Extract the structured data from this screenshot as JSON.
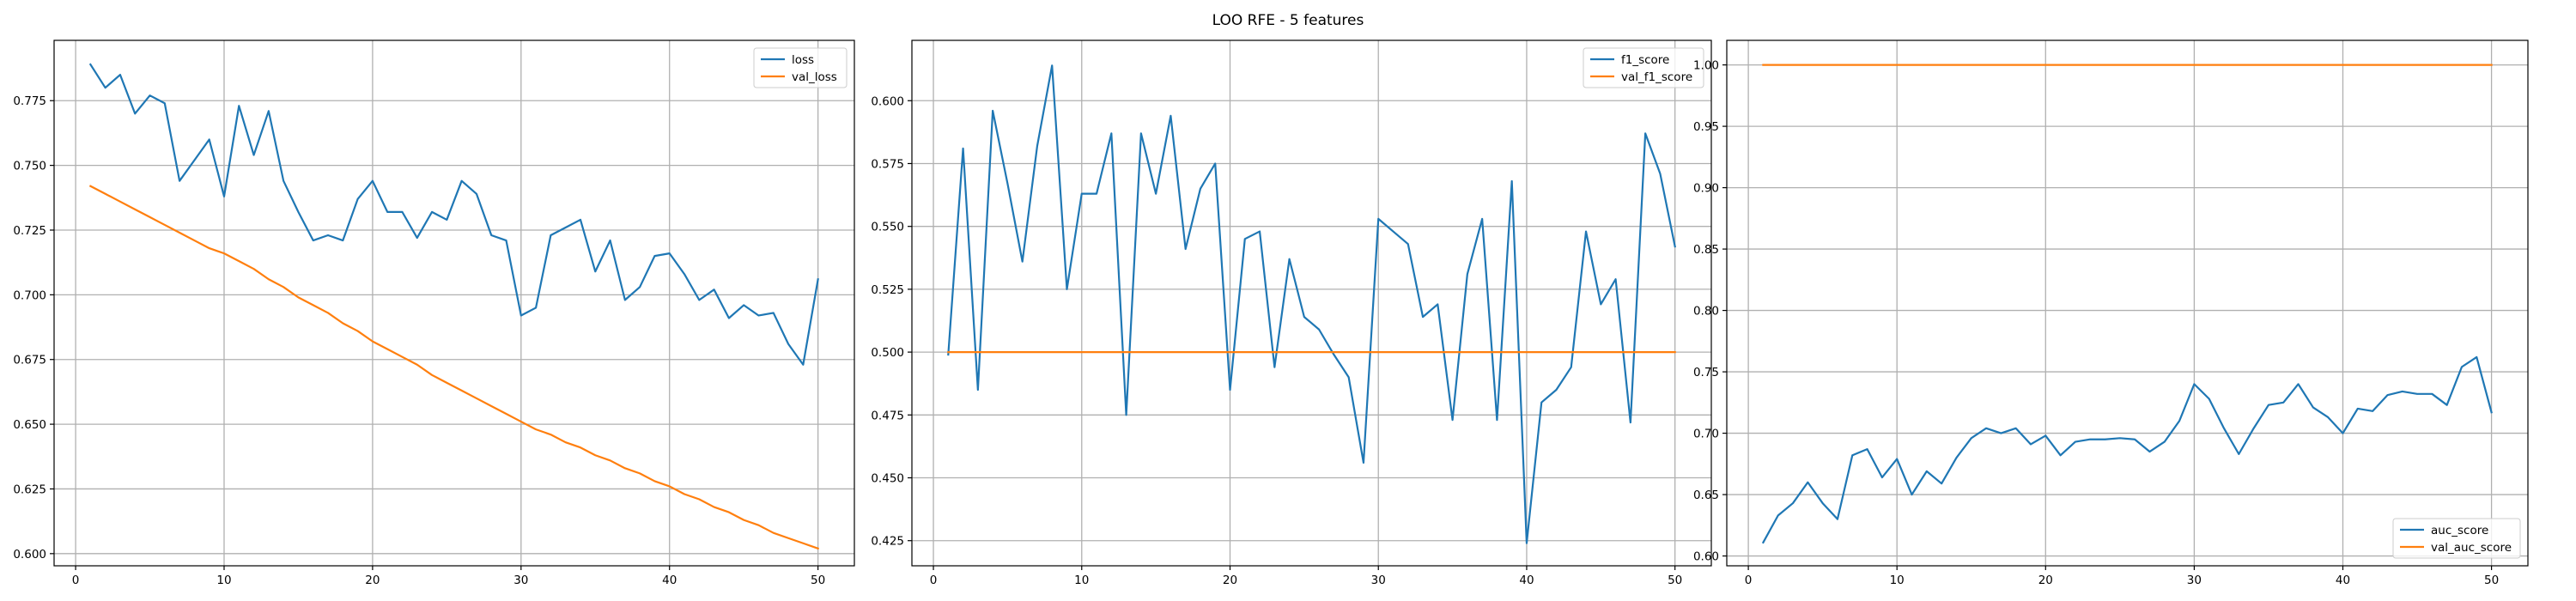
{
  "figure": {
    "title": "LOO RFE - 5 features"
  },
  "colors": {
    "series_1": "#1f77b4",
    "series_2": "#ff7f0e",
    "grid": "#b0b0b0",
    "axes": "#000000"
  },
  "chart_data": [
    {
      "type": "line",
      "title": "",
      "xlabel": "",
      "ylabel": "",
      "xlim": [
        -1.45,
        52.45
      ],
      "ylim": [
        0.5953,
        0.7983
      ],
      "xticks": [
        0,
        10,
        20,
        30,
        40,
        50
      ],
      "yticks": [
        0.6,
        0.625,
        0.65,
        0.675,
        0.7,
        0.725,
        0.75,
        0.775
      ],
      "ytick_labels": [
        "0.600",
        "0.625",
        "0.650",
        "0.675",
        "0.700",
        "0.725",
        "0.750",
        "0.775"
      ],
      "grid": true,
      "legend": "top-right",
      "series": [
        {
          "name": "loss",
          "color": "#1f77b4",
          "x": [
            1,
            2,
            3,
            4,
            5,
            6,
            7,
            8,
            9,
            10,
            11,
            12,
            13,
            14,
            15,
            16,
            17,
            18,
            19,
            20,
            21,
            22,
            23,
            24,
            25,
            26,
            27,
            28,
            29,
            30,
            31,
            32,
            33,
            34,
            35,
            36,
            37,
            38,
            39,
            40,
            41,
            42,
            43,
            44,
            45,
            46,
            47,
            48,
            49,
            50
          ],
          "values": [
            0.789,
            0.78,
            0.785,
            0.77,
            0.777,
            0.774,
            0.744,
            0.752,
            0.76,
            0.738,
            0.773,
            0.754,
            0.771,
            0.744,
            0.732,
            0.721,
            0.723,
            0.721,
            0.737,
            0.744,
            0.732,
            0.732,
            0.722,
            0.732,
            0.729,
            0.744,
            0.739,
            0.723,
            0.721,
            0.692,
            0.695,
            0.723,
            0.726,
            0.729,
            0.709,
            0.721,
            0.698,
            0.703,
            0.715,
            0.716,
            0.708,
            0.698,
            0.702,
            0.691,
            0.696,
            0.692,
            0.693,
            0.681,
            0.673,
            0.706
          ]
        },
        {
          "name": "val_loss",
          "color": "#ff7f0e",
          "x": [
            1,
            2,
            3,
            4,
            5,
            6,
            7,
            8,
            9,
            10,
            11,
            12,
            13,
            14,
            15,
            16,
            17,
            18,
            19,
            20,
            21,
            22,
            23,
            24,
            25,
            26,
            27,
            28,
            29,
            30,
            31,
            32,
            33,
            34,
            35,
            36,
            37,
            38,
            39,
            40,
            41,
            42,
            43,
            44,
            45,
            46,
            47,
            48,
            49,
            50
          ],
          "values": [
            0.742,
            0.739,
            0.736,
            0.733,
            0.73,
            0.727,
            0.724,
            0.721,
            0.718,
            0.716,
            0.713,
            0.71,
            0.706,
            0.703,
            0.699,
            0.696,
            0.693,
            0.689,
            0.686,
            0.682,
            0.679,
            0.676,
            0.673,
            0.669,
            0.666,
            0.663,
            0.66,
            0.657,
            0.654,
            0.651,
            0.648,
            0.646,
            0.643,
            0.641,
            0.638,
            0.636,
            0.633,
            0.631,
            0.628,
            0.626,
            0.623,
            0.621,
            0.618,
            0.616,
            0.613,
            0.611,
            0.608,
            0.606,
            0.604,
            0.602
          ]
        }
      ]
    },
    {
      "type": "line",
      "title": "",
      "xlabel": "",
      "ylabel": "",
      "xlim": [
        -1.45,
        52.45
      ],
      "ylim": [
        0.415,
        0.624
      ],
      "xticks": [
        0,
        10,
        20,
        30,
        40,
        50
      ],
      "yticks": [
        0.425,
        0.45,
        0.475,
        0.5,
        0.525,
        0.55,
        0.575,
        0.6
      ],
      "ytick_labels": [
        "0.425",
        "0.450",
        "0.475",
        "0.500",
        "0.525",
        "0.550",
        "0.575",
        "0.600"
      ],
      "grid": true,
      "legend": "top-right",
      "series": [
        {
          "name": "f1_score",
          "color": "#1f77b4",
          "x": [
            1,
            2,
            3,
            4,
            5,
            6,
            7,
            8,
            9,
            10,
            11,
            12,
            13,
            14,
            15,
            16,
            17,
            18,
            19,
            20,
            21,
            22,
            23,
            24,
            25,
            26,
            27,
            28,
            29,
            30,
            31,
            32,
            33,
            34,
            35,
            36,
            37,
            38,
            39,
            40,
            41,
            42,
            43,
            44,
            45,
            46,
            47,
            48,
            49,
            50
          ],
          "values": [
            0.499,
            0.581,
            0.485,
            0.596,
            0.567,
            0.536,
            0.582,
            0.614,
            0.525,
            0.563,
            0.563,
            0.587,
            0.475,
            0.587,
            0.563,
            0.594,
            0.541,
            0.565,
            0.575,
            0.485,
            0.545,
            0.548,
            0.494,
            0.537,
            0.514,
            0.509,
            0.499,
            0.49,
            0.456,
            0.553,
            0.548,
            0.543,
            0.514,
            0.519,
            0.473,
            0.531,
            0.553,
            0.473,
            0.568,
            0.424,
            0.48,
            0.485,
            0.494,
            0.548,
            0.519,
            0.529,
            0.472,
            0.587,
            0.571,
            0.542
          ]
        },
        {
          "name": "val_f1_score",
          "color": "#ff7f0e",
          "x": [
            1,
            2,
            3,
            4,
            5,
            6,
            7,
            8,
            9,
            10,
            11,
            12,
            13,
            14,
            15,
            16,
            17,
            18,
            19,
            20,
            21,
            22,
            23,
            24,
            25,
            26,
            27,
            28,
            29,
            30,
            31,
            32,
            33,
            34,
            35,
            36,
            37,
            38,
            39,
            40,
            41,
            42,
            43,
            44,
            45,
            46,
            47,
            48,
            49,
            50
          ],
          "values": [
            0.5,
            0.5,
            0.5,
            0.5,
            0.5,
            0.5,
            0.5,
            0.5,
            0.5,
            0.5,
            0.5,
            0.5,
            0.5,
            0.5,
            0.5,
            0.5,
            0.5,
            0.5,
            0.5,
            0.5,
            0.5,
            0.5,
            0.5,
            0.5,
            0.5,
            0.5,
            0.5,
            0.5,
            0.5,
            0.5,
            0.5,
            0.5,
            0.5,
            0.5,
            0.5,
            0.5,
            0.5,
            0.5,
            0.5,
            0.5,
            0.5,
            0.5,
            0.5,
            0.5,
            0.5,
            0.5,
            0.5,
            0.5,
            0.5,
            0.5
          ]
        }
      ]
    },
    {
      "type": "line",
      "title": "",
      "xlabel": "",
      "ylabel": "",
      "xlim": [
        -1.45,
        52.45
      ],
      "ylim": [
        0.592,
        1.02
      ],
      "xticks": [
        0,
        10,
        20,
        30,
        40,
        50
      ],
      "yticks": [
        0.6,
        0.65,
        0.7,
        0.75,
        0.8,
        0.85,
        0.9,
        0.95,
        1.0
      ],
      "ytick_labels": [
        "0.60",
        "0.65",
        "0.70",
        "0.75",
        "0.80",
        "0.85",
        "0.90",
        "0.95",
        "1.00"
      ],
      "grid": true,
      "legend": "bottom-right",
      "series": [
        {
          "name": "auc_score",
          "color": "#1f77b4",
          "x": [
            1,
            2,
            3,
            4,
            5,
            6,
            7,
            8,
            9,
            10,
            11,
            12,
            13,
            14,
            15,
            16,
            17,
            18,
            19,
            20,
            21,
            22,
            23,
            24,
            25,
            26,
            27,
            28,
            29,
            30,
            31,
            32,
            33,
            34,
            35,
            36,
            37,
            38,
            39,
            40,
            41,
            42,
            43,
            44,
            45,
            46,
            47,
            48,
            49,
            50
          ],
          "values": [
            0.611,
            0.633,
            0.643,
            0.66,
            0.643,
            0.63,
            0.682,
            0.687,
            0.664,
            0.679,
            0.65,
            0.669,
            0.659,
            0.68,
            0.696,
            0.704,
            0.7,
            0.704,
            0.691,
            0.698,
            0.682,
            0.693,
            0.695,
            0.695,
            0.696,
            0.695,
            0.685,
            0.693,
            0.71,
            0.74,
            0.728,
            0.704,
            0.683,
            0.704,
            0.723,
            0.725,
            0.74,
            0.721,
            0.713,
            0.7,
            0.72,
            0.718,
            0.731,
            0.734,
            0.732,
            0.732,
            0.723,
            0.754,
            0.762,
            0.717
          ]
        },
        {
          "name": "val_auc_score",
          "color": "#ff7f0e",
          "x": [
            1,
            2,
            3,
            4,
            5,
            6,
            7,
            8,
            9,
            10,
            11,
            12,
            13,
            14,
            15,
            16,
            17,
            18,
            19,
            20,
            21,
            22,
            23,
            24,
            25,
            26,
            27,
            28,
            29,
            30,
            31,
            32,
            33,
            34,
            35,
            36,
            37,
            38,
            39,
            40,
            41,
            42,
            43,
            44,
            45,
            46,
            47,
            48,
            49,
            50
          ],
          "values": [
            1.0,
            1.0,
            1.0,
            1.0,
            1.0,
            1.0,
            1.0,
            1.0,
            1.0,
            1.0,
            1.0,
            1.0,
            1.0,
            1.0,
            1.0,
            1.0,
            1.0,
            1.0,
            1.0,
            1.0,
            1.0,
            1.0,
            1.0,
            1.0,
            1.0,
            1.0,
            1.0,
            1.0,
            1.0,
            1.0,
            1.0,
            1.0,
            1.0,
            1.0,
            1.0,
            1.0,
            1.0,
            1.0,
            1.0,
            1.0,
            1.0,
            1.0,
            1.0,
            1.0,
            1.0,
            1.0,
            1.0,
            1.0,
            1.0,
            1.0
          ]
        }
      ]
    }
  ]
}
